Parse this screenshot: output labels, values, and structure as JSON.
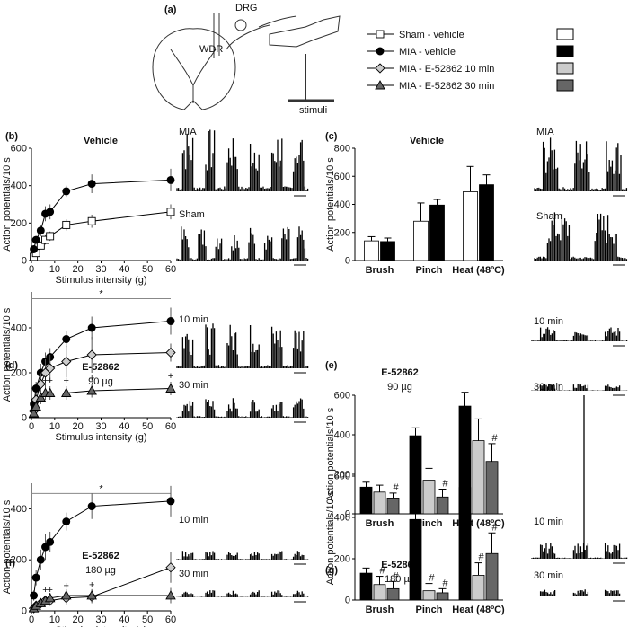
{
  "figure_a": {
    "panel": "(a)",
    "labels": [
      "DRG",
      "WDR",
      "stimuli"
    ]
  },
  "legend": {
    "entries": [
      {
        "name": "Sham - vehicle",
        "marker": "square",
        "color": "#ffffff"
      },
      {
        "name": "MIA - vehicle",
        "marker": "circle",
        "color": "#000000"
      },
      {
        "name": "MIA - E-52862 10 min",
        "marker": "diamond",
        "color": "#cccccc"
      },
      {
        "name": "MIA - E-52862 30 min",
        "marker": "triangle",
        "color": "#666666"
      }
    ]
  },
  "chart_data": [
    {
      "type": "line",
      "panel": "(b)",
      "title": "Vehicle",
      "x_label": "Stimulus intensity (g)",
      "y_label": "Action potentials/10 s",
      "x": [
        1,
        2,
        4,
        6,
        8,
        15,
        26,
        60
      ],
      "xlim": [
        0,
        60
      ],
      "xticks": [
        0,
        10,
        20,
        30,
        40,
        50,
        60
      ],
      "ylim": [
        0,
        600
      ],
      "yticks": [
        0,
        200,
        400,
        600
      ],
      "series": [
        {
          "name": "Sham - vehicle",
          "marker": "square",
          "color": "#ffffff",
          "values": [
            20,
            40,
            80,
            110,
            130,
            190,
            210,
            260
          ],
          "errors": [
            10,
            15,
            20,
            25,
            25,
            30,
            35,
            40
          ]
        },
        {
          "name": "MIA - vehicle",
          "marker": "circle",
          "color": "#000000",
          "values": [
            60,
            110,
            160,
            250,
            260,
            370,
            410,
            430
          ],
          "errors": [
            15,
            20,
            30,
            40,
            40,
            30,
            50,
            60
          ]
        }
      ]
    },
    {
      "type": "bar",
      "panel": "(c)",
      "title": "Vehicle",
      "y_label": "Action potentials/10 s",
      "categories": [
        "Brush",
        "Pinch",
        "Heat (48ºC)"
      ],
      "ylim": [
        0,
        800
      ],
      "yticks": [
        0,
        200,
        400,
        600,
        800
      ],
      "series": [
        {
          "name": "Sham - vehicle",
          "color": "#ffffff",
          "values": [
            140,
            280,
            490
          ],
          "errors": [
            30,
            130,
            180
          ]
        },
        {
          "name": "MIA - vehicle",
          "color": "#000000",
          "values": [
            135,
            395,
            540
          ],
          "errors": [
            25,
            40,
            70
          ]
        }
      ]
    },
    {
      "type": "line",
      "panel": "(d)",
      "title": "E-52862",
      "subtitle": "90 µg",
      "x_label": "Stimulus intensity (g)",
      "y_label": "Action potentials/10 s",
      "x": [
        1,
        2,
        4,
        6,
        8,
        15,
        26,
        60
      ],
      "xlim": [
        0,
        60
      ],
      "xticks": [
        0,
        10,
        20,
        30,
        40,
        50,
        60
      ],
      "ylim": [
        0,
        560
      ],
      "yticks": [
        0,
        200,
        400
      ],
      "significance": {
        "label": "*",
        "y": 530
      },
      "series": [
        {
          "name": "MIA - vehicle",
          "marker": "circle",
          "color": "#000000",
          "values": [
            60,
            130,
            200,
            250,
            270,
            350,
            400,
            430
          ],
          "errors": [
            20,
            30,
            40,
            40,
            40,
            35,
            50,
            60
          ]
        },
        {
          "name": "MIA - E-52862 10 min",
          "marker": "diamond",
          "color": "#cccccc",
          "values": [
            30,
            80,
            150,
            200,
            220,
            250,
            280,
            290
          ],
          "errors": [
            20,
            30,
            50,
            60,
            60,
            70,
            80,
            40
          ]
        },
        {
          "name": "MIA - E-52862 30 min",
          "marker": "triangle",
          "color": "#666666",
          "values": [
            20,
            50,
            90,
            110,
            110,
            110,
            120,
            130
          ],
          "errors": [
            10,
            20,
            30,
            30,
            30,
            30,
            30,
            30
          ],
          "point_labels": [
            null,
            null,
            null,
            "+",
            "+",
            "+",
            "+",
            "+"
          ]
        }
      ]
    },
    {
      "type": "bar",
      "panel": "(e)",
      "title": "E-52862",
      "subtitle": "90 µg",
      "y_label": "Action potentials/10 s",
      "categories": [
        "Brush",
        "Pinch",
        "Heat (48ºC)"
      ],
      "ylim": [
        0,
        600
      ],
      "yticks": [
        0,
        200,
        400,
        600
      ],
      "series": [
        {
          "name": "MIA - vehicle",
          "color": "#000000",
          "values": [
            135,
            395,
            545
          ],
          "errors": [
            25,
            40,
            70
          ]
        },
        {
          "name": "MIA - E-52862 10 min",
          "color": "#cccccc",
          "values": [
            110,
            170,
            370
          ],
          "errors": [
            35,
            60,
            110
          ]
        },
        {
          "name": "MIA - E-52862 30 min",
          "color": "#666666",
          "values": [
            80,
            85,
            265
          ],
          "errors": [
            25,
            40,
            90
          ],
          "point_labels": [
            "#",
            "#",
            "#"
          ]
        }
      ]
    },
    {
      "type": "line",
      "panel": "(f)",
      "title": "E-52862",
      "subtitle": "180 µg",
      "x_label": "Stimulus intensity (g)",
      "y_label": "Action potentials/10 s",
      "x": [
        1,
        2,
        4,
        6,
        8,
        15,
        26,
        60
      ],
      "xlim": [
        0,
        60
      ],
      "xticks": [
        0,
        10,
        20,
        30,
        40,
        50,
        60
      ],
      "ylim": [
        0,
        500
      ],
      "yticks": [
        0,
        200,
        400
      ],
      "significance": {
        "label": "*",
        "y": 460
      },
      "series": [
        {
          "name": "MIA - vehicle",
          "marker": "circle",
          "color": "#000000",
          "values": [
            60,
            130,
            200,
            250,
            270,
            350,
            410,
            430
          ],
          "errors": [
            20,
            30,
            40,
            50,
            40,
            35,
            50,
            60
          ]
        },
        {
          "name": "MIA - E-52862 10 min",
          "marker": "diamond",
          "color": "#cccccc",
          "values": [
            10,
            20,
            30,
            40,
            40,
            50,
            55,
            170
          ],
          "errors": [
            10,
            10,
            15,
            20,
            20,
            25,
            25,
            60
          ],
          "point_labels": [
            null,
            null,
            null,
            "+",
            "+",
            "+",
            "+",
            null
          ]
        },
        {
          "name": "MIA - E-52862 30 min",
          "marker": "triangle",
          "color": "#666666",
          "values": [
            10,
            20,
            30,
            40,
            50,
            60,
            60,
            60
          ],
          "errors": [
            10,
            10,
            15,
            20,
            20,
            25,
            25,
            30
          ]
        }
      ]
    },
    {
      "type": "bar",
      "panel": "(g)",
      "title": "E-52862",
      "subtitle": "180 µg",
      "y_label": "Action potentials/10 s",
      "categories": [
        "Brush",
        "Pinch",
        "Heat (48ºC)"
      ],
      "ylim": [
        0,
        600
      ],
      "yticks": [
        0,
        200,
        400,
        600
      ],
      "series": [
        {
          "name": "MIA - vehicle",
          "color": "#000000",
          "values": [
            130,
            390,
            545
          ],
          "errors": [
            25,
            40,
            70
          ]
        },
        {
          "name": "MIA - E-52862 10 min",
          "color": "#cccccc",
          "values": [
            75,
            45,
            120
          ],
          "errors": [
            40,
            35,
            60
          ],
          "point_labels": [
            "#",
            "#",
            "#"
          ]
        },
        {
          "name": "MIA - E-52862 30 min",
          "color": "#666666",
          "values": [
            55,
            35,
            225
          ],
          "errors": [
            35,
            20,
            100
          ],
          "point_labels": [
            "#",
            "#",
            "#"
          ]
        }
      ]
    }
  ],
  "traces": [
    {
      "labels": [
        "MIA",
        "Sham"
      ]
    },
    {
      "labels": [
        "MIA",
        "Sham"
      ]
    },
    {
      "labels": [
        "10 min",
        "30 min"
      ]
    },
    {
      "labels": [
        "10 min",
        "30 min"
      ]
    },
    {
      "labels": [
        "10 min",
        "30 min"
      ]
    },
    {
      "labels": [
        "10 min",
        "30 min"
      ]
    }
  ]
}
